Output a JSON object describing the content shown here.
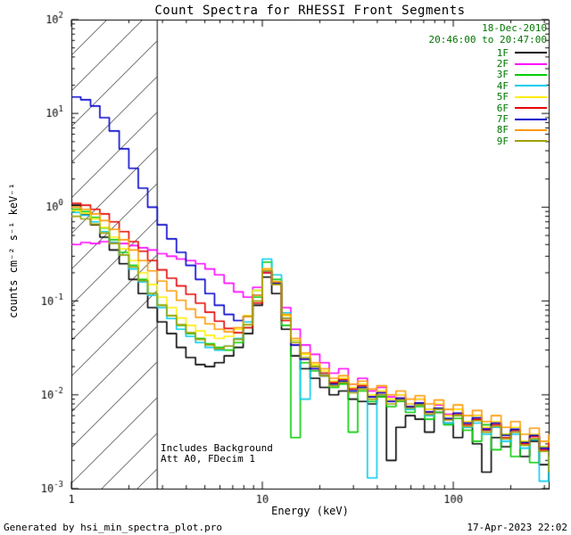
{
  "annotations": {
    "date": "18-Dec-2010",
    "time_range": "20:46:00 to 20:47:00",
    "note_line1": "Includes Background",
    "note_line2": "Att A0, FDecim 1",
    "text_color": "#007700"
  },
  "footer": {
    "left": "Generated by hsi_min_spectra_plot.pro",
    "right": "17-Apr-2023 22:02"
  },
  "chart_data": {
    "type": "line",
    "title": "Count Spectra for RHESSI Front Segments",
    "xlabel": "Energy (keV)",
    "ylabel": "counts cm⁻² s⁻¹ keV⁻¹",
    "xscale": "log",
    "yscale": "log",
    "xlim": [
      1,
      316
    ],
    "ylim": [
      0.001,
      100
    ],
    "x_ticks": [
      1,
      10,
      100
    ],
    "x_tick_labels": [
      "1",
      "10",
      "100"
    ],
    "y_tick_exponents": [
      -3,
      -2,
      -1,
      0,
      1,
      2
    ],
    "y_tick_labels": [
      "10⁻³",
      "10⁻²",
      "10⁻¹",
      "10⁰",
      "10¹",
      "10²"
    ],
    "grid": false,
    "legend_position": "top-right-inside",
    "step_mode": true,
    "hatch_region": {
      "xmin": 1,
      "xmax": 2.8
    },
    "energies": [
      1.0,
      1.12,
      1.26,
      1.41,
      1.58,
      1.78,
      2.0,
      2.24,
      2.51,
      2.82,
      3.16,
      3.55,
      3.98,
      4.47,
      5.01,
      5.62,
      6.31,
      7.08,
      7.94,
      8.91,
      10.0,
      11.2,
      12.6,
      14.1,
      15.8,
      17.8,
      20.0,
      22.4,
      25.1,
      28.2,
      31.6,
      35.5,
      39.8,
      44.7,
      50.1,
      56.2,
      63.1,
      70.8,
      79.4,
      89.1,
      100,
      112,
      126,
      141,
      158,
      178,
      200,
      224,
      251,
      282,
      316
    ],
    "series": [
      {
        "name": "1F",
        "color": "#000000",
        "values": [
          1.05,
          0.85,
          0.65,
          0.48,
          0.35,
          0.25,
          0.17,
          0.12,
          0.085,
          0.06,
          0.045,
          0.032,
          0.025,
          0.021,
          0.02,
          0.022,
          0.026,
          0.032,
          0.045,
          0.09,
          0.18,
          0.12,
          0.05,
          0.026,
          0.019,
          0.015,
          0.012,
          0.01,
          0.011,
          0.009,
          0.0085,
          0.008,
          0.0095,
          0.002,
          0.0045,
          0.006,
          0.0055,
          0.004,
          0.0065,
          0.005,
          0.0035,
          0.0045,
          0.003,
          0.0015,
          0.0035,
          0.0028,
          0.0042,
          0.0022,
          0.0032,
          0.0018,
          0.0012
        ]
      },
      {
        "name": "2F",
        "color": "#ff00ff",
        "values": [
          0.4,
          0.42,
          0.41,
          0.43,
          0.42,
          0.41,
          0.39,
          0.37,
          0.35,
          0.32,
          0.3,
          0.28,
          0.27,
          0.25,
          0.22,
          0.19,
          0.155,
          0.125,
          0.11,
          0.14,
          0.2,
          0.16,
          0.085,
          0.05,
          0.034,
          0.027,
          0.022,
          0.017,
          0.019,
          0.013,
          0.015,
          0.011,
          0.012,
          0.0095,
          0.01,
          0.008,
          0.009,
          0.007,
          0.0078,
          0.0062,
          0.007,
          0.0052,
          0.006,
          0.0044,
          0.005,
          0.0038,
          0.0042,
          0.0031,
          0.0036,
          0.0026,
          0.003
        ]
      },
      {
        "name": "3F",
        "color": "#00cc00",
        "values": [
          0.95,
          0.9,
          0.78,
          0.6,
          0.45,
          0.33,
          0.24,
          0.17,
          0.12,
          0.09,
          0.07,
          0.055,
          0.045,
          0.04,
          0.035,
          0.032,
          0.03,
          0.036,
          0.052,
          0.11,
          0.26,
          0.17,
          0.055,
          0.0035,
          0.022,
          0.018,
          0.016,
          0.012,
          0.013,
          0.004,
          0.011,
          0.0085,
          0.0095,
          0.0075,
          0.0085,
          0.0065,
          0.0075,
          0.0055,
          0.0065,
          0.0048,
          0.0056,
          0.0042,
          0.0032,
          0.0048,
          0.0026,
          0.0038,
          0.0022,
          0.0032,
          0.0019,
          0.0028,
          0.0016
        ]
      },
      {
        "name": "4F",
        "color": "#00ccee",
        "values": [
          0.88,
          0.82,
          0.7,
          0.55,
          0.42,
          0.31,
          0.22,
          0.16,
          0.115,
          0.085,
          0.065,
          0.05,
          0.042,
          0.036,
          0.032,
          0.03,
          0.033,
          0.04,
          0.06,
          0.13,
          0.28,
          0.19,
          0.075,
          0.038,
          0.009,
          0.02,
          0.017,
          0.013,
          0.014,
          0.011,
          0.012,
          0.0013,
          0.01,
          0.0085,
          0.009,
          0.007,
          0.008,
          0.006,
          0.007,
          0.005,
          0.006,
          0.0045,
          0.005,
          0.0038,
          0.0045,
          0.0032,
          0.0038,
          0.0027,
          0.0033,
          0.0012,
          0.0028
        ]
      },
      {
        "name": "5F",
        "color": "#ffee00",
        "values": [
          0.92,
          0.86,
          0.75,
          0.61,
          0.48,
          0.36,
          0.27,
          0.2,
          0.15,
          0.11,
          0.085,
          0.066,
          0.055,
          0.048,
          0.043,
          0.04,
          0.042,
          0.05,
          0.07,
          0.13,
          0.22,
          0.16,
          0.07,
          0.038,
          0.027,
          0.021,
          0.018,
          0.014,
          0.015,
          0.012,
          0.013,
          0.01,
          0.011,
          0.009,
          0.01,
          0.008,
          0.009,
          0.007,
          0.008,
          0.006,
          0.007,
          0.0052,
          0.006,
          0.0045,
          0.0052,
          0.0038,
          0.0045,
          0.0032,
          0.0038,
          0.0028,
          0.0033
        ]
      },
      {
        "name": "6F",
        "color": "#e60000",
        "values": [
          1.1,
          1.05,
          0.95,
          0.85,
          0.7,
          0.55,
          0.43,
          0.34,
          0.27,
          0.215,
          0.175,
          0.145,
          0.118,
          0.095,
          0.076,
          0.061,
          0.051,
          0.046,
          0.052,
          0.095,
          0.2,
          0.15,
          0.062,
          0.034,
          0.024,
          0.019,
          0.017,
          0.0135,
          0.0145,
          0.0115,
          0.0125,
          0.0095,
          0.0105,
          0.0085,
          0.0092,
          0.0075,
          0.0082,
          0.0065,
          0.0072,
          0.0055,
          0.0063,
          0.0048,
          0.0055,
          0.0042,
          0.0048,
          0.0035,
          0.0042,
          0.003,
          0.0036,
          0.0026,
          0.0031
        ]
      },
      {
        "name": "7F",
        "color": "#0000cc",
        "values": [
          15,
          14,
          12,
          9,
          6.5,
          4.2,
          2.6,
          1.6,
          1.0,
          0.65,
          0.46,
          0.33,
          0.24,
          0.17,
          0.12,
          0.09,
          0.072,
          0.062,
          0.068,
          0.115,
          0.21,
          0.155,
          0.065,
          0.034,
          0.024,
          0.019,
          0.016,
          0.013,
          0.014,
          0.011,
          0.012,
          0.0095,
          0.0105,
          0.0085,
          0.0092,
          0.0075,
          0.0082,
          0.0066,
          0.0072,
          0.0056,
          0.0064,
          0.005,
          0.0057,
          0.0043,
          0.005,
          0.0037,
          0.0043,
          0.0031,
          0.0037,
          0.0027,
          0.0022
        ]
      },
      {
        "name": "8F",
        "color": "#ff9900",
        "values": [
          1.0,
          0.95,
          0.85,
          0.72,
          0.58,
          0.45,
          0.35,
          0.27,
          0.21,
          0.163,
          0.128,
          0.102,
          0.082,
          0.067,
          0.057,
          0.05,
          0.047,
          0.052,
          0.068,
          0.115,
          0.22,
          0.16,
          0.072,
          0.04,
          0.028,
          0.022,
          0.019,
          0.015,
          0.016,
          0.013,
          0.014,
          0.0115,
          0.0125,
          0.01,
          0.011,
          0.009,
          0.0098,
          0.008,
          0.0088,
          0.007,
          0.0078,
          0.006,
          0.0068,
          0.0052,
          0.006,
          0.0045,
          0.0052,
          0.0038,
          0.0044,
          0.0032,
          0.0038
        ]
      },
      {
        "name": "9F",
        "color": "#a0a000",
        "values": [
          0.8,
          0.75,
          0.66,
          0.53,
          0.41,
          0.31,
          0.23,
          0.165,
          0.12,
          0.09,
          0.07,
          0.056,
          0.046,
          0.039,
          0.034,
          0.031,
          0.033,
          0.039,
          0.056,
          0.1,
          0.21,
          0.15,
          0.065,
          0.036,
          0.025,
          0.02,
          0.016,
          0.0125,
          0.0135,
          0.0105,
          0.0115,
          0.009,
          0.01,
          0.008,
          0.0088,
          0.0072,
          0.0078,
          0.0062,
          0.007,
          0.0054,
          0.006,
          0.0046,
          0.0053,
          0.004,
          0.0046,
          0.0034,
          0.004,
          0.0029,
          0.0034,
          0.0025,
          0.0015
        ]
      }
    ]
  }
}
